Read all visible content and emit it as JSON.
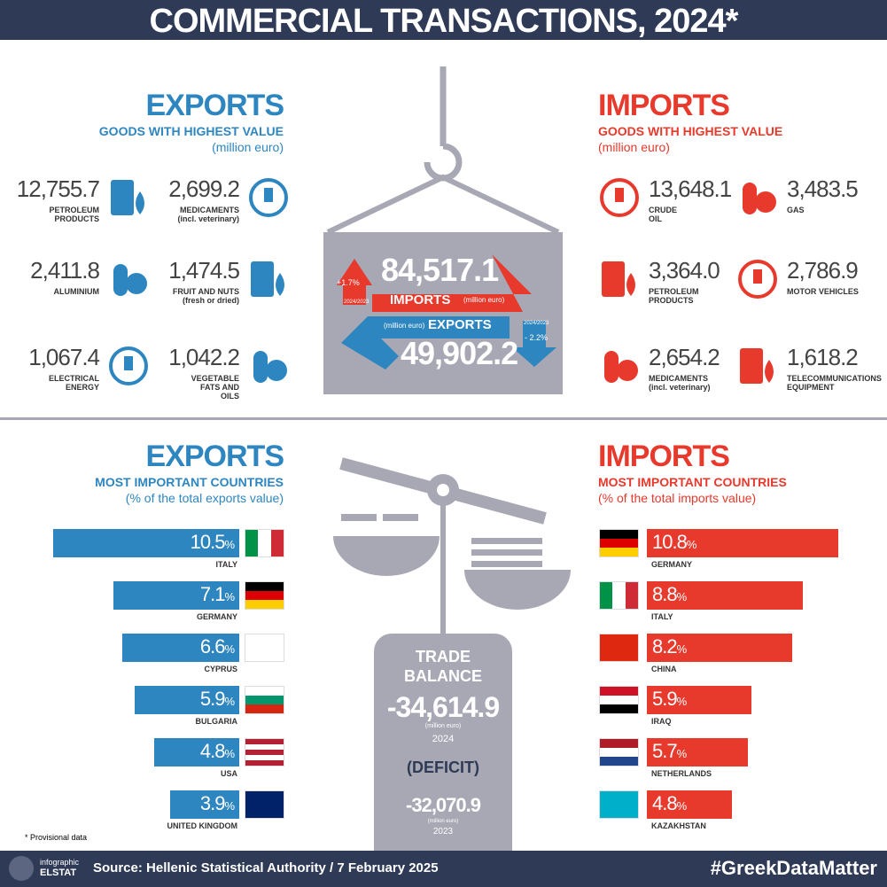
{
  "header": {
    "title": "COMMERCIAL TRANSACTIONS, 2024*"
  },
  "exports_goods": {
    "title": "EXPORTS",
    "subtitle": "GOODS WITH HIGHEST VALUE",
    "unit": "(million euro)",
    "items": [
      {
        "value": "12,755.7",
        "label": [
          "PETROLEUM",
          "PRODUCTS"
        ]
      },
      {
        "value": "2,699.2",
        "label": [
          "MEDICAMENTS",
          "(incl. veterinary)"
        ]
      },
      {
        "value": "2,411.8",
        "label": [
          "ALUMINIUM"
        ]
      },
      {
        "value": "1,474.5",
        "label": [
          "FRUIT AND NUTS",
          "(fresh or dried)"
        ]
      },
      {
        "value": "1,067.4",
        "label": [
          "ELECTRICAL",
          "ENERGY"
        ]
      },
      {
        "value": "1,042.2",
        "label": [
          "VEGETABLE",
          "FATS AND",
          "OILS"
        ]
      }
    ]
  },
  "imports_goods": {
    "title": "IMPORTS",
    "subtitle": "GOODS WITH HIGHEST VALUE",
    "unit": "(million euro)",
    "items": [
      {
        "value": "13,648.1",
        "label": [
          "CRUDE",
          "OIL"
        ]
      },
      {
        "value": "3,483.5",
        "label": [
          "GAS"
        ]
      },
      {
        "value": "3,364.0",
        "label": [
          "PETROLEUM",
          "PRODUCTS"
        ]
      },
      {
        "value": "2,786.9",
        "label": [
          "MOTOR VEHICLES"
        ]
      },
      {
        "value": "2,654.2",
        "label": [
          "MEDICAMENTS",
          "(incl. veterinary)"
        ]
      },
      {
        "value": "1,618.2",
        "label": [
          "TELECOMMUNICATIONS",
          "EQUIPMENT"
        ]
      }
    ]
  },
  "totals": {
    "imports_value": "84,517.1",
    "imports_label": "IMPORTS",
    "imports_unit": "(million euro)",
    "imports_change": "+1.7%",
    "imports_period": "2024/2023",
    "exports_value": "49,902.2",
    "exports_label": "EXPORTS",
    "exports_unit": "(million euro)",
    "exports_change": "- 2.2%",
    "exports_period": "2024/2023"
  },
  "exports_countries": {
    "title": "EXPORTS",
    "subtitle": "MOST IMPORTANT COUNTRIES",
    "unit": "(% of the total exports value)",
    "percent_sign": "%",
    "items": [
      {
        "name": "ITALY",
        "value": 10.5
      },
      {
        "name": "GERMANY",
        "value": 7.1
      },
      {
        "name": "CYPRUS",
        "value": 6.6
      },
      {
        "name": "BULGARIA",
        "value": 5.9
      },
      {
        "name": "USA",
        "value": 4.8
      },
      {
        "name": "UNITED KINGDOM",
        "value": 3.9
      }
    ]
  },
  "imports_countries": {
    "title": "IMPORTS",
    "subtitle": "MOST IMPORTANT COUNTRIES",
    "unit": "(% of the total imports value)",
    "percent_sign": "%",
    "items": [
      {
        "name": "GERMANY",
        "value": 10.8
      },
      {
        "name": "ITALY",
        "value": 8.8
      },
      {
        "name": "CHINA",
        "value": 8.2
      },
      {
        "name": "IRAQ",
        "value": 5.9
      },
      {
        "name": "NETHERLANDS",
        "value": 5.7
      },
      {
        "name": "KAZAKHSTAN",
        "value": 4.8
      }
    ]
  },
  "trade_balance": {
    "title": [
      "TRADE",
      "BALANCE"
    ],
    "value_2024": "-34,614.9",
    "unit_2024": "(million euro)",
    "year_2024": "2024",
    "note": "(DEFICIT)",
    "value_2023": "-32,070.9",
    "unit_2023": "(million euro)",
    "year_2023": "2023"
  },
  "footnote": "* Provisional data",
  "footer": {
    "logo_top": "infographic",
    "logo_bottom": "ELSTAT",
    "source": "Source: Hellenic Statistical Authority / 7 February 2025",
    "hashtag": "#GreekDataMatter"
  }
}
